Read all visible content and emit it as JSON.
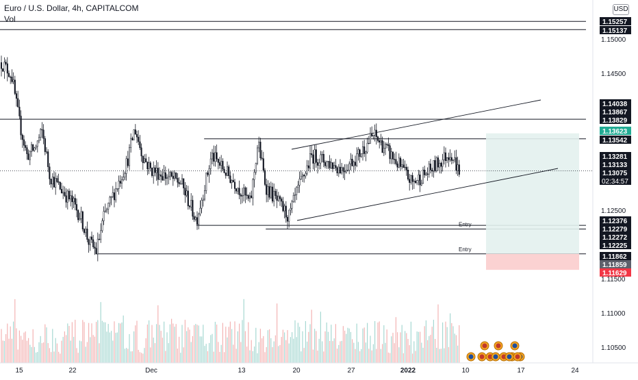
{
  "header": {
    "title": "Euro / U.S. Dollar, 4h, CAPITALCOM",
    "volume_label": "Vol"
  },
  "currency": "USD",
  "chart_data": {
    "type": "candlestick",
    "symbol": "Euro / U.S. Dollar",
    "timeframe": "4h",
    "source": "CAPITALCOM",
    "ylim": [
      1.1025,
      1.1575
    ],
    "price_axis_ticks": [
      1.105,
      1.11,
      1.115,
      1.125,
      1.145,
      1.15
    ],
    "x_axis_ticks": [
      "15",
      "22",
      "Dec",
      "13",
      "20",
      "27",
      "2022",
      "10",
      "17",
      "24"
    ],
    "current_price": 1.13075,
    "countdown": "02:34:57",
    "price_labels": [
      {
        "value": "1.15257",
        "style": "dark"
      },
      {
        "value": "1.15137",
        "style": "dark"
      },
      {
        "value": "1.14038",
        "style": "dark"
      },
      {
        "value": "1.13867",
        "style": "dark"
      },
      {
        "value": "1.13829",
        "style": "dark"
      },
      {
        "value": "1.13623",
        "style": "green"
      },
      {
        "value": "1.13542",
        "style": "dark"
      },
      {
        "value": "1.13281",
        "style": "dark"
      },
      {
        "value": "1.13133",
        "style": "dark"
      },
      {
        "value": "1.13075",
        "style": "dark"
      },
      {
        "value": "1.12376",
        "style": "dark"
      },
      {
        "value": "1.12279",
        "style": "dark"
      },
      {
        "value": "1.12272",
        "style": "dark"
      },
      {
        "value": "1.12225",
        "style": "dark"
      },
      {
        "value": "1.11862",
        "style": "dark"
      },
      {
        "value": "1.11859",
        "style": "gray"
      },
      {
        "value": "1.11629",
        "style": "red"
      }
    ],
    "horizontal_levels": [
      {
        "value": 1.15257,
        "from": "left-edge"
      },
      {
        "value": 1.15137,
        "from": "left-edge"
      },
      {
        "value": 1.13829,
        "from": "left-edge"
      },
      {
        "value": 1.13542,
        "from": "Dec 09"
      },
      {
        "value": 1.12279,
        "from": "Dec 08"
      },
      {
        "value": 1.12225,
        "from": "Dec 17",
        "annotation": "Entry"
      },
      {
        "value": 1.11862,
        "from": "Nov 25",
        "annotation": "Entry"
      }
    ],
    "annotations": [
      "Entry",
      "Entry"
    ],
    "position_tool": {
      "entry": 1.11862,
      "target": 1.13623,
      "stop": 1.11629
    },
    "channel_lines": [
      {
        "label": "upper",
        "start": 1.1339,
        "end": 1.1411
      },
      {
        "label": "lower",
        "start": 1.1235,
        "end": 1.1311
      }
    ],
    "price_path": [
      {
        "date": "Nov 12",
        "close": 1.1475
      },
      {
        "date": "Nov 14",
        "close": 1.1448
      },
      {
        "date": "Nov 15",
        "close": 1.138
      },
      {
        "date": "Nov 16",
        "close": 1.133
      },
      {
        "date": "Nov 17",
        "close": 1.134
      },
      {
        "date": "Nov 18",
        "close": 1.1365
      },
      {
        "date": "Nov 19",
        "close": 1.13
      },
      {
        "date": "Nov 22",
        "close": 1.126
      },
      {
        "date": "Nov 23",
        "close": 1.124
      },
      {
        "date": "Nov 24",
        "close": 1.1205
      },
      {
        "date": "Nov 25",
        "close": 1.119
      },
      {
        "date": "Nov 26",
        "close": 1.124
      },
      {
        "date": "Nov 29",
        "close": 1.132
      },
      {
        "date": "Nov 30",
        "close": 1.137
      },
      {
        "date": "Dec 01",
        "close": 1.133
      },
      {
        "date": "Dec 02",
        "close": 1.131
      },
      {
        "date": "Dec 06",
        "close": 1.129
      },
      {
        "date": "Dec 08",
        "close": 1.1235
      },
      {
        "date": "Dec 10",
        "close": 1.133
      },
      {
        "date": "Dec 13",
        "close": 1.129
      },
      {
        "date": "Dec 15",
        "close": 1.126
      },
      {
        "date": "Dec 16",
        "close": 1.135
      },
      {
        "date": "Dec 17",
        "close": 1.1285
      },
      {
        "date": "Dec 20",
        "close": 1.124
      },
      {
        "date": "Dec 21",
        "close": 1.1275
      },
      {
        "date": "Dec 23",
        "close": 1.133
      },
      {
        "date": "Dec 27",
        "close": 1.131
      },
      {
        "date": "Dec 29",
        "close": 1.133
      },
      {
        "date": "Dec 31",
        "close": 1.136
      },
      {
        "date": "Jan 03",
        "close": 1.132
      },
      {
        "date": "Jan 05",
        "close": 1.129
      },
      {
        "date": "Jan 07",
        "close": 1.1305
      },
      {
        "date": "Jan 10",
        "close": 1.1335
      },
      {
        "date": "Jan 11",
        "close": 1.1308
      }
    ]
  },
  "event_markers": [
    "US",
    "US",
    "EU",
    "EU",
    "US",
    "US",
    "EU",
    "US",
    "EU",
    "EU",
    "EU",
    "US"
  ]
}
